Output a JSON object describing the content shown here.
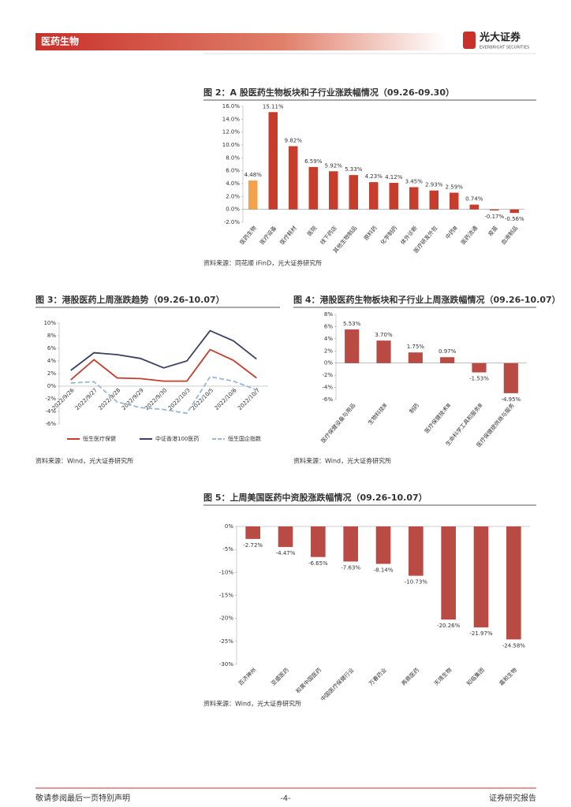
{
  "header": {
    "section": "医药生物",
    "brand": "光大证券",
    "brand_en": "EVERBRIGHT SECURITIES"
  },
  "footer": {
    "left": "敬请参阅最后一页特别声明",
    "page": "-4-",
    "right": "证券研究报告"
  },
  "chart_data": [
    {
      "type": "bar",
      "title": "图 2：A 股医药生物板块和子行业涨跌幅情况（09.26-09.30）",
      "source": "资料来源：同花顺 iFinD，光大证券研究所",
      "categories": [
        "医药生物",
        "医疗设备",
        "医疗耗材",
        "医院",
        "线下药店",
        "其他生物制品",
        "原料药",
        "化学制药",
        "体外诊断",
        "医疗研发外包",
        "中药Ⅲ",
        "医药流通",
        "疫苗",
        "血液制品"
      ],
      "values": [
        4.48,
        15.11,
        9.82,
        6.59,
        5.92,
        5.33,
        4.23,
        4.12,
        3.45,
        2.93,
        2.59,
        0.74,
        -0.17,
        -0.56
      ],
      "value_labels": [
        "4.48%",
        "15.11%",
        "9.82%",
        "6.59%",
        "5.92%",
        "5.33%",
        "4.23%",
        "4.12%",
        "3.45%",
        "2.93%",
        "2.59%",
        "0.74%",
        "-0.17%",
        "-0.56%"
      ],
      "colors": [
        "#f5a04a",
        "#c63d2c",
        "#c63d2c",
        "#c63d2c",
        "#c63d2c",
        "#c63d2c",
        "#c63d2c",
        "#c63d2c",
        "#c63d2c",
        "#c63d2c",
        "#c63d2c",
        "#c63d2c",
        "#c63d2c",
        "#c63d2c"
      ],
      "ylim": [
        -2,
        16
      ],
      "yticks": [
        {
          "value": -2,
          "label": "-2.0%"
        },
        {
          "value": 0,
          "label": "0.0%"
        },
        {
          "value": 2,
          "label": "2.0%"
        },
        {
          "value": 4,
          "label": "4.0%"
        },
        {
          "value": 6,
          "label": "6.0%"
        },
        {
          "value": 8,
          "label": "8.0%"
        },
        {
          "value": 10,
          "label": "10.0%"
        },
        {
          "value": 12,
          "label": "12.0%"
        },
        {
          "value": 14,
          "label": "14.0%"
        },
        {
          "value": 16,
          "label": "16.0%"
        }
      ]
    },
    {
      "type": "line",
      "title": "图 3：港股医药上周涨跌趋势（09.26-10.07）",
      "source": "资料来源：Wind，光大证券研究所",
      "categories": [
        "2022/9/26",
        "2022/9/27",
        "2022/9/28",
        "2022/9/29",
        "2022/9/30",
        "2022/10/3",
        "2022/10/5",
        "2022/10/6",
        "2022/10/7"
      ],
      "series": [
        {
          "name": "恒生医疗保健",
          "color": "#c63d2c",
          "values": [
            1.0,
            4.2,
            1.3,
            1.2,
            0.8,
            0.8,
            5.8,
            4.1,
            1.3
          ]
        },
        {
          "name": "中证香港100医药",
          "color": "#3c3f66",
          "values": [
            2.5,
            5.3,
            5.0,
            4.4,
            2.9,
            4.0,
            8.8,
            7.2,
            4.3
          ]
        },
        {
          "name": "恒生国企指数",
          "color": "#9ab7d3",
          "dashed": true,
          "values": [
            0.5,
            0.7,
            -2.5,
            -3.4,
            -3.7,
            -4.3,
            1.5,
            0.8,
            -0.6
          ]
        }
      ],
      "ylim": [
        -6,
        10
      ],
      "yticks": [
        {
          "value": -6,
          "label": "-6%"
        },
        {
          "value": -4,
          "label": "-4%"
        },
        {
          "value": -2,
          "label": "-2%"
        },
        {
          "value": 0,
          "label": "0%"
        },
        {
          "value": 2,
          "label": "2%"
        },
        {
          "value": 4,
          "label": "4%"
        },
        {
          "value": 6,
          "label": "6%"
        },
        {
          "value": 8,
          "label": "8%"
        },
        {
          "value": 10,
          "label": "10%"
        }
      ],
      "legend": "bottom"
    },
    {
      "type": "bar",
      "title": "图 4：港股医药生物板块和子行业上周涨跌幅情况（09.26-10.07）",
      "source": "资料来源：Wind，光大证券研究所",
      "categories": [
        "医疗保健设备与用品",
        "生物科技Ⅲ",
        "制药",
        "医疗保健技术Ⅲ",
        "生命科学工具和服务Ⅲ",
        "医疗保健提供商与服务"
      ],
      "values": [
        5.53,
        3.7,
        1.75,
        0.97,
        -1.53,
        -4.95
      ],
      "value_labels": [
        "5.53%",
        "3.70%",
        "1.75%",
        "0.97%",
        "-1.53%",
        "-4.95%"
      ],
      "color": "#b94a44",
      "ylim": [
        -6,
        8
      ],
      "yticks": [
        {
          "value": -6,
          "label": "-6%"
        },
        {
          "value": -4,
          "label": "-4%"
        },
        {
          "value": -2,
          "label": "-2%"
        },
        {
          "value": 0,
          "label": "0%"
        },
        {
          "value": 2,
          "label": "2%"
        },
        {
          "value": 4,
          "label": "4%"
        },
        {
          "value": 6,
          "label": "6%"
        },
        {
          "value": 8,
          "label": "8%"
        }
      ]
    },
    {
      "type": "bar",
      "title": "图 5：上周美国医药中资股涨跌幅情况（09.26-10.07）",
      "source": "资料来源：Wind，光大证券研究所",
      "categories": [
        "百济神州",
        "亚盛医药",
        "和黄中国医药",
        "中国医疗保健行业",
        "万春药业",
        "再鼎医药",
        "天境生物",
        "知临集团",
        "嘉和生物"
      ],
      "values": [
        -2.72,
        -4.47,
        -6.65,
        -7.63,
        -8.14,
        -10.73,
        -20.26,
        -21.97,
        -24.58
      ],
      "value_labels": [
        "-2.72%",
        "-4.47%",
        "-6.65%",
        "-7.63%",
        "-8.14%",
        "-10.73%",
        "-20.26%",
        "-21.97%",
        "-24.58%"
      ],
      "color": "#b94a44",
      "ylim": [
        -30,
        0
      ],
      "yticks": [
        {
          "value": -30,
          "label": "-30%"
        },
        {
          "value": -25,
          "label": "-25%"
        },
        {
          "value": -20,
          "label": "-20%"
        },
        {
          "value": -15,
          "label": "-15%"
        },
        {
          "value": -10,
          "label": "-10%"
        },
        {
          "value": -5,
          "label": "-5%"
        },
        {
          "value": 0,
          "label": "0%"
        }
      ]
    }
  ]
}
